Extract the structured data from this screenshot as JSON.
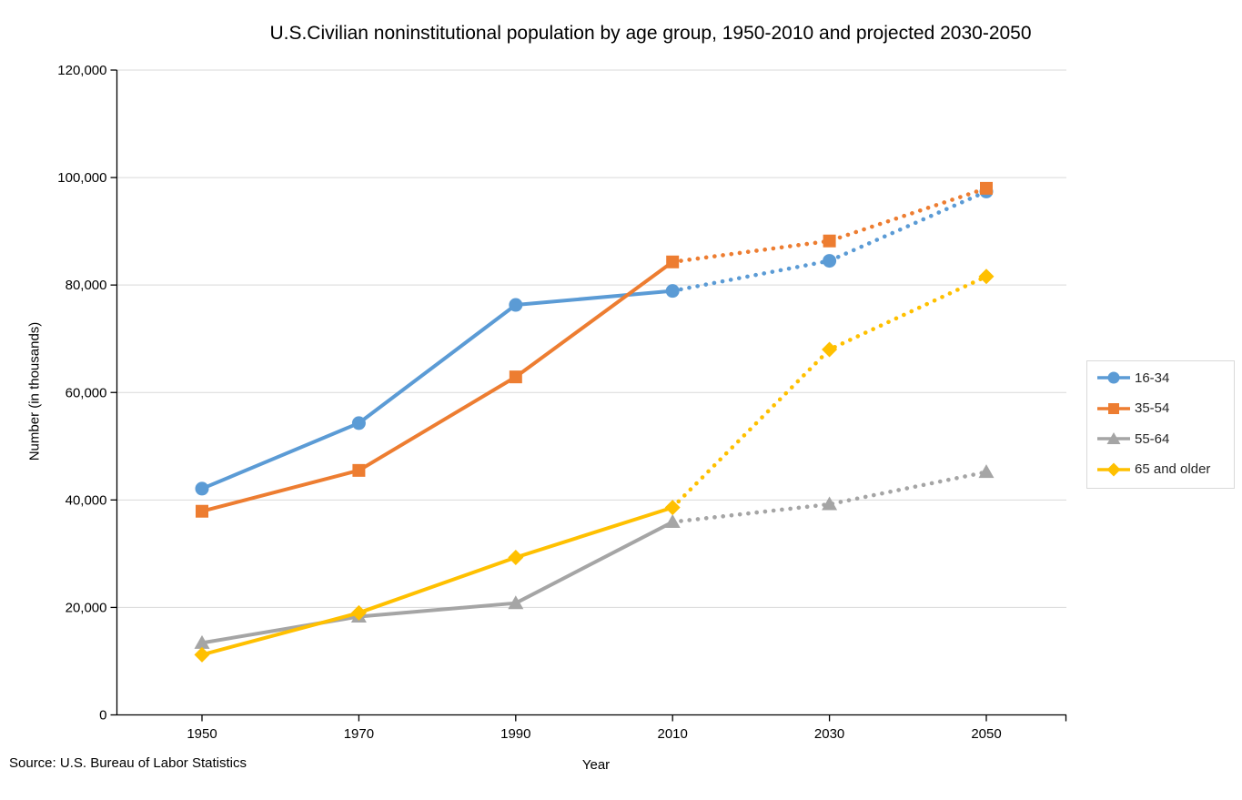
{
  "title": "U.S.Civilian noninstitutional population by age group, 1950-2010 and projected 2030-2050",
  "source_note": "Source: U.S. Bureau of Labor Statistics",
  "colors": {
    "axis": "#000000",
    "gridline": "#D9D9D9",
    "legend_border": "#D9D9D9",
    "background": "#FFFFFF"
  },
  "chart_data": {
    "type": "line",
    "title": "U.S.Civilian noninstitutional population by age group, 1950-2010 and projected 2030-2050",
    "xlabel": "Year",
    "ylabel": "Number (in thousands)",
    "categories": [
      "1950",
      "1970",
      "1990",
      "2010",
      "2030",
      "2050"
    ],
    "ylim": [
      0,
      120000
    ],
    "ytick_step": 20000,
    "ytick_labels": [
      "0",
      "20,000",
      "40,000",
      "60,000",
      "80,000",
      "100,000",
      "120,000"
    ],
    "grid": "horizontal",
    "legend_position": "right",
    "projection": {
      "note": "Values from 2010 through 2050 are projected and drawn with dotted lines",
      "solid_through_index": 3
    },
    "series": [
      {
        "name": "16-34",
        "marker": "circle",
        "color": "#5B9BD5",
        "values": [
          42100,
          54300,
          76300,
          78900,
          84500,
          97400
        ]
      },
      {
        "name": "35-54",
        "marker": "square",
        "color": "#ED7D31",
        "values": [
          37900,
          45500,
          62900,
          84300,
          88200,
          98000
        ]
      },
      {
        "name": "55-64",
        "marker": "triangle",
        "color": "#A5A5A5",
        "values": [
          13400,
          18300,
          20800,
          35900,
          39200,
          45200
        ]
      },
      {
        "name": "65 and older",
        "marker": "diamond",
        "color": "#FFC000",
        "values": [
          11200,
          19000,
          29300,
          38600,
          68000,
          81600
        ]
      }
    ]
  }
}
